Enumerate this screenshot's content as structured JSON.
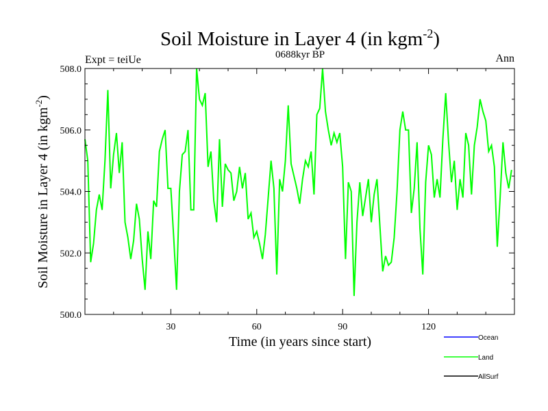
{
  "chart_data": {
    "type": "line",
    "title_main": "Soil Moisture in Layer 4 (in kgm",
    "title_sup": "-2",
    "title_close": ")",
    "subtitle": "0688kyr BP",
    "left_label": "Expt = teiUe",
    "right_label": "Ann",
    "xlabel": "Time (in years since start)",
    "ylabel_main": "Soil Moisture in Layer 4 (in kgm",
    "ylabel_sup": "-2",
    "ylabel_close": ")",
    "xlim": [
      0,
      150
    ],
    "ylim": [
      500,
      508
    ],
    "x_ticks": [
      30,
      60,
      90,
      120
    ],
    "x_tick_labels": [
      "30",
      "60",
      "90",
      "120"
    ],
    "y_ticks": [
      500,
      502,
      504,
      506,
      508
    ],
    "y_tick_labels": [
      "500.0",
      "502.0",
      "504.0",
      "506.0",
      "508.0"
    ],
    "legend_position": "bottom-right",
    "series": [
      {
        "name": "Ocean",
        "color": "#0000ff",
        "values": []
      },
      {
        "name": "Land",
        "color": "#00ff00",
        "values": [
          505.7,
          505.0,
          501.7,
          502.3,
          503.4,
          503.9,
          503.4,
          505.0,
          507.3,
          504.1,
          505.2,
          505.9,
          504.6,
          505.6,
          503.0,
          502.5,
          501.8,
          502.4,
          503.6,
          503.1,
          501.8,
          500.8,
          502.7,
          501.8,
          503.7,
          503.5,
          505.3,
          505.7,
          506.0,
          504.1,
          504.1,
          502.5,
          500.8,
          504.0,
          505.2,
          505.3,
          506.0,
          503.4,
          503.4,
          508.0,
          507.0,
          506.8,
          507.2,
          504.8,
          505.3,
          503.7,
          503.0,
          505.7,
          503.5,
          504.9,
          504.7,
          504.6,
          503.7,
          504.0,
          504.8,
          504.1,
          504.6,
          503.1,
          503.3,
          502.5,
          502.7,
          502.3,
          501.8,
          502.6,
          503.8,
          505.0,
          504.1,
          501.3,
          504.4,
          504.0,
          505.0,
          506.8,
          504.9,
          504.5,
          504.1,
          503.6,
          504.4,
          505.0,
          504.8,
          505.3,
          503.9,
          506.5,
          506.7,
          508.0,
          506.6,
          506.0,
          505.5,
          505.9,
          505.6,
          505.9,
          504.8,
          501.8,
          504.3,
          504.0,
          500.6,
          503.0,
          504.3,
          503.2,
          503.8,
          504.4,
          503.0,
          503.9,
          504.4,
          502.9,
          501.4,
          501.9,
          501.6,
          501.7,
          502.5,
          504.0,
          506.0,
          506.6,
          506.0,
          506.0,
          503.3,
          504.1,
          505.6,
          502.8,
          501.3,
          504.3,
          505.5,
          505.2,
          503.8,
          504.4,
          503.8,
          505.7,
          507.2,
          505.6,
          504.3,
          505.0,
          503.4,
          504.4,
          503.8,
          505.9,
          505.5,
          503.9,
          505.5,
          506.1,
          507.0,
          506.6,
          506.3,
          505.3,
          505.5,
          504.8,
          502.2,
          503.8,
          505.6,
          504.6,
          504.1,
          504.7
        ]
      },
      {
        "name": "AllSurf",
        "color": "#000000",
        "values": []
      }
    ]
  }
}
